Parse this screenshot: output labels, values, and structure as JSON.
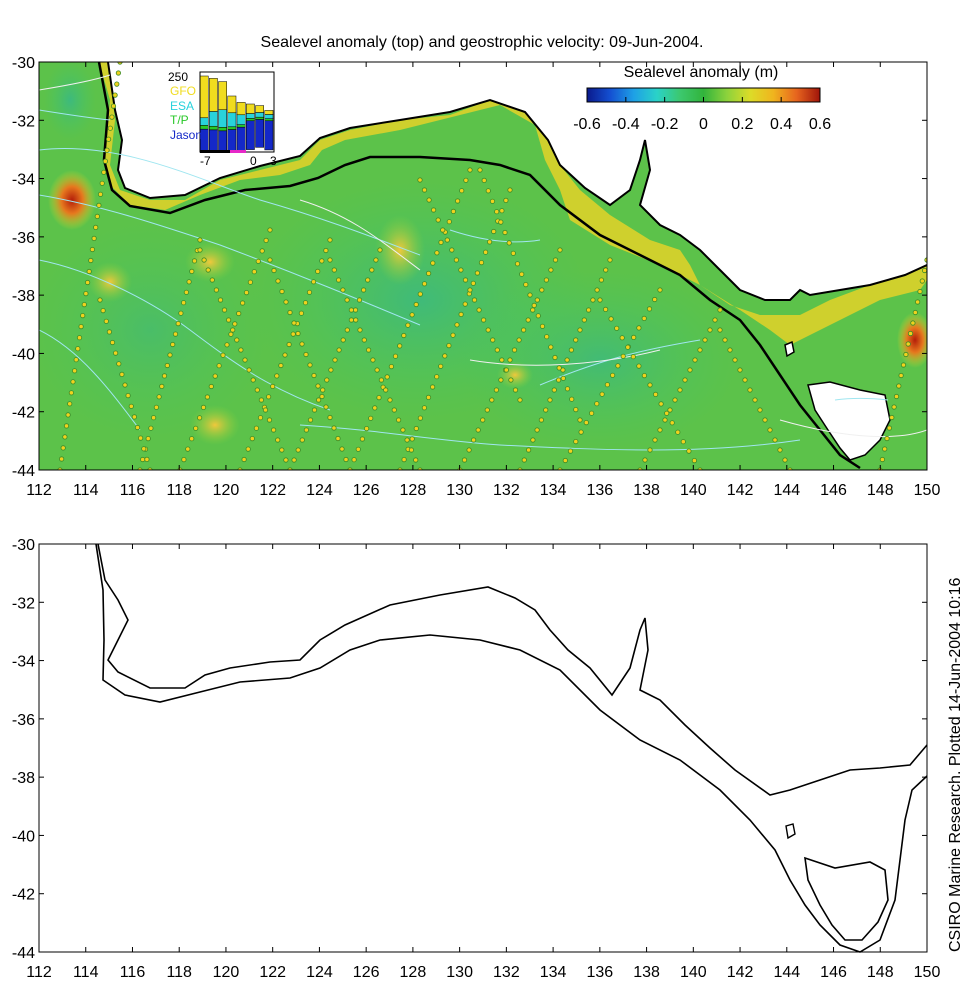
{
  "title": "Sealevel anomaly (top) and geostrophic velocity: 09-Jun-2004.",
  "colorbar": {
    "label": "Sealevel anomaly (m)",
    "ticks": [
      "-0.6",
      "-0.4",
      "-0.2",
      "0",
      "0.2",
      "0.4",
      "0.6"
    ],
    "min": -0.6,
    "max": 0.6,
    "colors": [
      "#0a1a8c",
      "#1450d2",
      "#1ea0e6",
      "#2ad2c8",
      "#3cc86e",
      "#32b43c",
      "#8cd23c",
      "#dcdc28",
      "#f0b41e",
      "#e6641e",
      "#a0140a"
    ]
  },
  "inset": {
    "top_label": "250",
    "satellites": [
      {
        "name": "GFO",
        "color": "#f0dc1e"
      },
      {
        "name": "ESA",
        "color": "#28d2dc"
      },
      {
        "name": "T/P",
        "color": "#28c828"
      },
      {
        "name": "Jason",
        "color": "#1428c8"
      }
    ],
    "x_ticks": [
      "-7",
      "0",
      "3"
    ]
  },
  "top_map": {
    "x_ticks": [
      "112",
      "114",
      "116",
      "118",
      "120",
      "122",
      "124",
      "126",
      "128",
      "130",
      "132",
      "134",
      "136",
      "138",
      "140",
      "142",
      "144",
      "146",
      "148",
      "150"
    ],
    "y_ticks": [
      "-30",
      "-32",
      "-34",
      "-36",
      "-38",
      "-40",
      "-42",
      "-44"
    ],
    "xlim": [
      112,
      150
    ],
    "ylim": [
      -44,
      -30
    ]
  },
  "bottom_map": {
    "x_ticks": [
      "112",
      "114",
      "116",
      "118",
      "120",
      "122",
      "124",
      "126",
      "128",
      "130",
      "132",
      "134",
      "136",
      "138",
      "140",
      "142",
      "144",
      "146",
      "148",
      "150"
    ],
    "y_ticks": [
      "-30",
      "-32",
      "-34",
      "-36",
      "-38",
      "-40",
      "-42",
      "-44"
    ],
    "xlim": [
      112,
      150
    ],
    "ylim": [
      -44,
      -30
    ]
  },
  "credit": "CSIRO Marine Research. Plotted 14-Jun-2004 10:16"
}
